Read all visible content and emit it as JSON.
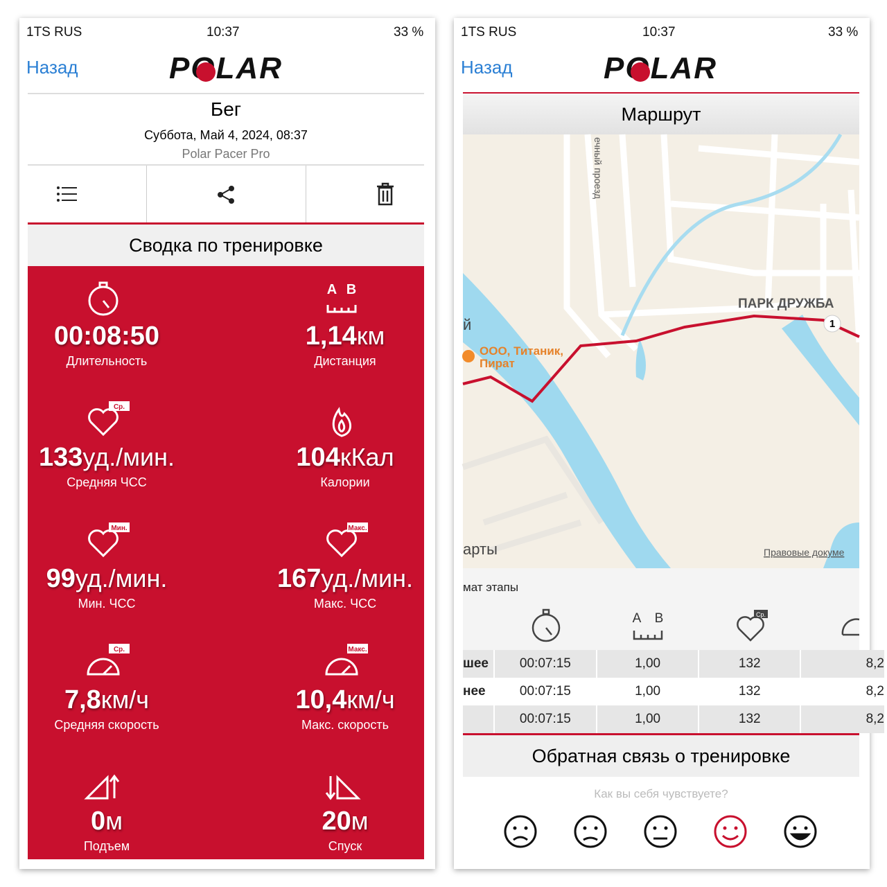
{
  "left": {
    "status": {
      "carrier": "1TS RUS",
      "time": "10:37",
      "battery": "33 %"
    },
    "nav": {
      "back": "Назад",
      "logo": "POLAR"
    },
    "header": {
      "title": "Бег",
      "date": "Суббота, Май 4, 2024, 08:37",
      "device": "Polar Pacer Pro"
    },
    "section_title": "Сводка по тренировке",
    "stats": [
      {
        "value": "00:08:50",
        "label": "Длительность"
      },
      {
        "value": "1,14",
        "unit": "км",
        "label": "Дистанция",
        "badge": [
          "A",
          "B"
        ]
      },
      {
        "value": "133",
        "unit": "уд./мин.",
        "label": "Средняя ЧСС",
        "badge": [
          "Ср."
        ]
      },
      {
        "value": "104",
        "unit": "кКал",
        "label": "Калории"
      },
      {
        "value": "99",
        "unit": "уд./мин.",
        "label": "Мин. ЧСС",
        "badge": [
          "Мин."
        ]
      },
      {
        "value": "167",
        "unit": "уд./мин.",
        "label": "Макс. ЧСС",
        "badge": [
          "Макс."
        ]
      },
      {
        "value": "7,8",
        "unit": "км/ч",
        "label": "Средняя скорость",
        "badge": [
          "Ср."
        ]
      },
      {
        "value": "10,4",
        "unit": "км/ч",
        "label": "Макс. скорость",
        "badge": [
          "Макс."
        ]
      },
      {
        "value": "0",
        "unit": "м",
        "label": "Подъем"
      },
      {
        "value": "20",
        "unit": "м",
        "label": "Спуск"
      }
    ]
  },
  "right": {
    "status": {
      "carrier": "1TS RUS",
      "time": "10:37",
      "battery": "33 %"
    },
    "nav": {
      "back": "Назад",
      "logo": "POLAR"
    },
    "section_title": "Маршрут",
    "map": {
      "street": "ечный проезд",
      "park": "ПАРК ДРУЖБА",
      "poi": [
        "ООО, Титаник,",
        "Пират"
      ],
      "marker": "1",
      "edge_left": "й",
      "edge_bottom": "арты",
      "legal": "Правовые докуме"
    },
    "laps": {
      "title": "мат этапы",
      "header_badges": [
        [
          "A",
          "B"
        ],
        [
          "Ср."
        ]
      ],
      "rows": [
        [
          "шее",
          "00:07:15",
          "1,00",
          "132",
          "8,2"
        ],
        [
          "нее",
          "00:07:15",
          "1,00",
          "132",
          "8,2"
        ],
        [
          null,
          "00:07:15",
          "1,00",
          "132",
          "8,2"
        ]
      ]
    },
    "feedback": {
      "title": "Обратная связь о тренировке",
      "question": "Как вы себя чувствуете?",
      "selected": 3
    }
  }
}
